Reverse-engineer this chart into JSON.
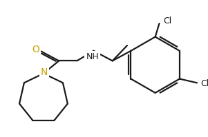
{
  "bg_color": "#ffffff",
  "line_color": "#1a1a1a",
  "atom_color_N": "#c8a000",
  "atom_color_O": "#c8a000",
  "atom_color_Cl": "#1a1a1a",
  "atom_color_NH": "#1a1a1a",
  "line_width": 1.6,
  "font_size_atom": 9,
  "figsize": [
    3.01,
    1.99
  ],
  "dpi": 100,
  "xlim": [
    0,
    301
  ],
  "ylim": [
    0,
    199
  ]
}
